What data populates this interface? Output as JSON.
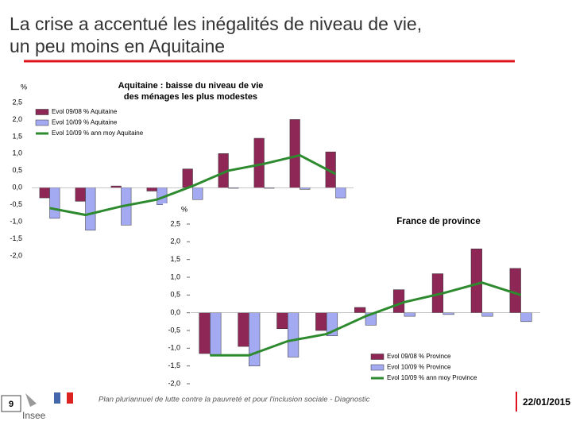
{
  "slide": {
    "title": [
      "La crise a accentué les inégalités de niveau de vie,",
      "un peu moins en Aquitaine"
    ],
    "page_number": "9",
    "logo": "Insee",
    "footer": "Plan pluriannuel de lutte contre la pauvreté et pour l'inclusion sociale - Diagnostic",
    "date": "22/01/2015"
  },
  "chart_data": [
    {
      "type": "bar_line",
      "title": [
        "Aquitaine : baisse du niveau de vie",
        "des ménages les plus modestes"
      ],
      "y_label": "%",
      "categories": [
        null,
        null,
        null,
        null,
        null,
        null,
        null,
        null,
        null
      ],
      "ylim": [
        -2.0,
        2.5
      ],
      "yticks": [
        {
          "value": -2.0,
          "label": "-2,0"
        },
        {
          "value": -1.5,
          "label": "-1,5"
        },
        {
          "value": -1.0,
          "label": "-1,0"
        },
        {
          "value": -0.5,
          "label": "-0,5"
        },
        {
          "value": 0.0,
          "label": "0,0"
        },
        {
          "value": 0.5,
          "label": "0,5"
        },
        {
          "value": 1.0,
          "label": "1,0"
        },
        {
          "value": 1.5,
          "label": "1,5"
        },
        {
          "value": 2.0,
          "label": "2,0"
        },
        {
          "value": 2.5,
          "label": "2,5"
        }
      ],
      "legend": "upper left",
      "series": [
        {
          "name": "Evol 09/08 % Aquitaine",
          "kind": "bar",
          "color": "#8e2756",
          "values": [
            -0.3,
            -0.4,
            0.05,
            -0.1,
            0.55,
            1.0,
            1.45,
            2.0,
            1.05
          ]
        },
        {
          "name": "Evol 10/09 % Aquitaine",
          "kind": "bar",
          "color": "#a3aaf2",
          "values": [
            -0.9,
            -1.25,
            -1.1,
            -0.5,
            -0.35,
            0.0,
            0.0,
            -0.05,
            -0.3
          ]
        },
        {
          "name": "Evol 10/09 % ann moy Aquitaine",
          "kind": "line",
          "color": "#2e8a2e",
          "values": [
            -0.6,
            -0.8,
            -0.55,
            -0.35,
            0.05,
            0.5,
            0.7,
            0.95,
            0.4
          ]
        }
      ]
    },
    {
      "type": "bar_line",
      "title": [
        "France de province"
      ],
      "y_label": "%",
      "categories": [
        null,
        null,
        null,
        null,
        null,
        null,
        null,
        null,
        null
      ],
      "ylim": [
        -2.0,
        2.5
      ],
      "yticks": [
        {
          "value": -2.0,
          "label": "-2,0"
        },
        {
          "value": -1.5,
          "label": "-1,5"
        },
        {
          "value": -1.0,
          "label": "-1,0"
        },
        {
          "value": -0.5,
          "label": "-0,5"
        },
        {
          "value": 0.0,
          "label": "0,0"
        },
        {
          "value": 0.5,
          "label": "0,5"
        },
        {
          "value": 1.0,
          "label": "1,0"
        },
        {
          "value": 1.5,
          "label": "1,5"
        },
        {
          "value": 2.0,
          "label": "2,0"
        },
        {
          "value": 2.5,
          "label": "2,5"
        }
      ],
      "legend": "lower right",
      "series": [
        {
          "name": "Evol 09/08 % Province",
          "kind": "bar",
          "color": "#8e2756",
          "values": [
            -1.15,
            -0.95,
            -0.45,
            -0.5,
            0.15,
            0.65,
            1.1,
            1.8,
            1.25
          ]
        },
        {
          "name": "Evol 10/09 % Province",
          "kind": "bar",
          "color": "#a3aaf2",
          "values": [
            -1.2,
            -1.5,
            -1.25,
            -0.65,
            -0.35,
            -0.1,
            -0.05,
            -0.1,
            -0.25
          ]
        },
        {
          "name": "Evol 10/09 % ann moy Province",
          "kind": "line",
          "color": "#2e8a2e",
          "values": [
            -1.2,
            -1.2,
            -0.8,
            -0.6,
            -0.1,
            0.3,
            0.55,
            0.85,
            0.5
          ]
        }
      ]
    }
  ]
}
